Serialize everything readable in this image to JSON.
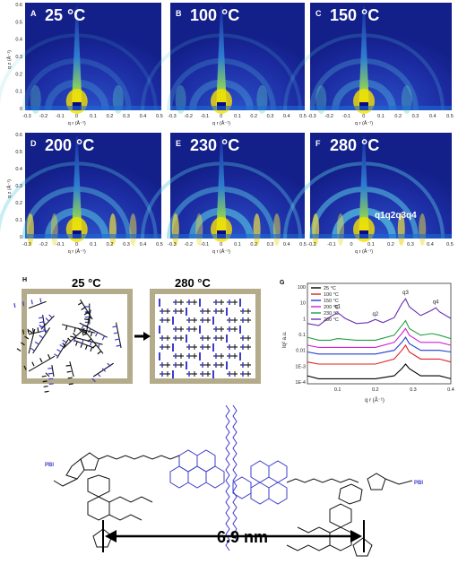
{
  "giwaxs": {
    "y_axis_label": "q z (Å⁻¹)",
    "x_axis_label": "q r (Å⁻¹)",
    "y_ticks": [
      "0.6",
      "0.5",
      "0.4",
      "0.3",
      "0.2",
      "0.1",
      "0"
    ],
    "x_ticks": [
      "-0.3",
      "-0.2",
      "-0.1",
      "0",
      "0.1",
      "0.2",
      "0.3",
      "0.4",
      "0.5"
    ],
    "x_ticks_right": [
      "-0.2",
      "-0.1",
      "0",
      "0.1",
      "0.2",
      "0.3",
      "0.4",
      "0.5"
    ],
    "panels": [
      {
        "letter": "A",
        "temp": "25 °C"
      },
      {
        "letter": "B",
        "temp": "100 °C"
      },
      {
        "letter": "C",
        "temp": "150 °C"
      },
      {
        "letter": "D",
        "temp": "200 °C"
      },
      {
        "letter": "E",
        "temp": "230 °C"
      },
      {
        "letter": "F",
        "temp": "280 °C"
      }
    ],
    "peak_annotation": "q1q2q3q4"
  },
  "panel_h": {
    "letter": "H",
    "left_temp": "25 °C",
    "right_temp": "280 °C"
  },
  "panel_g": {
    "letter": "G",
    "peaks": [
      "q1",
      "q2",
      "q3",
      "q4"
    ]
  },
  "chemical": {
    "left_group": "PBI",
    "right_group": "PBI",
    "distance": "6.9 nm"
  },
  "chart_data": {
    "type": "line",
    "xlabel": "q r (Å⁻¹)",
    "ylabel": "Iq² a.u.",
    "y_scale": "log",
    "xlim": [
      0.02,
      0.4
    ],
    "ylim": [
      0.0001,
      100
    ],
    "x_ticks": [
      "0.1",
      "0.2",
      "0.3",
      "0.4"
    ],
    "y_ticks": [
      "100",
      "10",
      "1",
      "0.1",
      "0.01",
      "1E-3",
      "1E-4"
    ],
    "legend_position": "top-left",
    "series": [
      {
        "name": "25 °C",
        "color": "#000000",
        "x": [
          0.02,
          0.05,
          0.08,
          0.1,
          0.15,
          0.2,
          0.25,
          0.27,
          0.28,
          0.29,
          0.32,
          0.35,
          0.37,
          0.4
        ],
        "y": [
          0.0003,
          0.0002,
          0.0002,
          0.0002,
          0.0002,
          0.0002,
          0.0003,
          0.0008,
          0.0015,
          0.0008,
          0.0003,
          0.0003,
          0.0003,
          0.0002
        ]
      },
      {
        "name": "100 °C",
        "color": "#e02020",
        "x": [
          0.02,
          0.05,
          0.08,
          0.1,
          0.15,
          0.2,
          0.25,
          0.27,
          0.28,
          0.29,
          0.32,
          0.35,
          0.37,
          0.4
        ],
        "y": [
          0.002,
          0.0015,
          0.0015,
          0.0015,
          0.0015,
          0.0015,
          0.003,
          0.01,
          0.02,
          0.008,
          0.003,
          0.003,
          0.003,
          0.002
        ]
      },
      {
        "name": "150 °C",
        "color": "#1f3fd0",
        "x": [
          0.02,
          0.05,
          0.08,
          0.1,
          0.15,
          0.2,
          0.25,
          0.27,
          0.28,
          0.29,
          0.32,
          0.35,
          0.37,
          0.4
        ],
        "y": [
          0.008,
          0.006,
          0.006,
          0.006,
          0.006,
          0.006,
          0.01,
          0.03,
          0.06,
          0.025,
          0.01,
          0.01,
          0.01,
          0.008
        ]
      },
      {
        "name": "200 °C",
        "color": "#d020d0",
        "x": [
          0.02,
          0.05,
          0.08,
          0.1,
          0.15,
          0.2,
          0.25,
          0.27,
          0.28,
          0.29,
          0.32,
          0.35,
          0.37,
          0.4
        ],
        "y": [
          0.02,
          0.015,
          0.015,
          0.015,
          0.015,
          0.015,
          0.03,
          0.1,
          0.2,
          0.08,
          0.03,
          0.03,
          0.03,
          0.02
        ]
      },
      {
        "name": "230 °C",
        "color": "#20a040",
        "x": [
          0.02,
          0.05,
          0.08,
          0.1,
          0.15,
          0.2,
          0.25,
          0.27,
          0.28,
          0.29,
          0.32,
          0.35,
          0.37,
          0.4
        ],
        "y": [
          0.06,
          0.04,
          0.04,
          0.05,
          0.04,
          0.04,
          0.08,
          0.3,
          0.6,
          0.2,
          0.08,
          0.1,
          0.08,
          0.05
        ]
      },
      {
        "name": "280 °C",
        "color": "#6a2fb0",
        "x": [
          0.02,
          0.05,
          0.08,
          0.1,
          0.12,
          0.15,
          0.18,
          0.2,
          0.22,
          0.25,
          0.27,
          0.28,
          0.29,
          0.32,
          0.35,
          0.36,
          0.37,
          0.4
        ],
        "y": [
          0.4,
          0.3,
          1.0,
          1.8,
          0.8,
          0.4,
          0.45,
          0.7,
          0.45,
          0.9,
          6,
          12,
          4,
          1.2,
          2.5,
          3.5,
          2,
          0.8
        ]
      }
    ]
  }
}
